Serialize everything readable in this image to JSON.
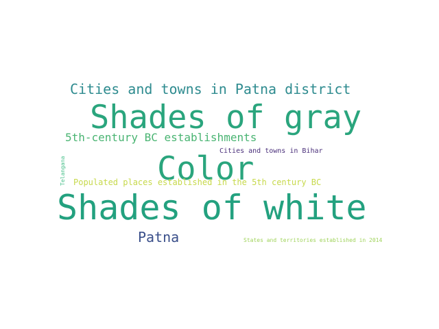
{
  "cloud": {
    "words": [
      {
        "text": "Cities and towns in Patna district",
        "color": "#2e8b8f"
      },
      {
        "text": "Shades of gray",
        "color": "#2aa57d"
      },
      {
        "text": "5th-century BC establishments",
        "color": "#49b472"
      },
      {
        "text": "Cities and towns in Bihar",
        "color": "#4a2f7a"
      },
      {
        "text": "Color",
        "color": "#2aa57d"
      },
      {
        "text": "Telangana",
        "color": "#49c08b"
      },
      {
        "text": "Populated places established in the 5th century BC",
        "color": "#c7d94b"
      },
      {
        "text": "Shades of white",
        "color": "#23a17f"
      },
      {
        "text": "Patna",
        "color": "#3a4f8a"
      },
      {
        "text": "States and territories established in 2014",
        "color": "#9fd35a"
      }
    ]
  }
}
